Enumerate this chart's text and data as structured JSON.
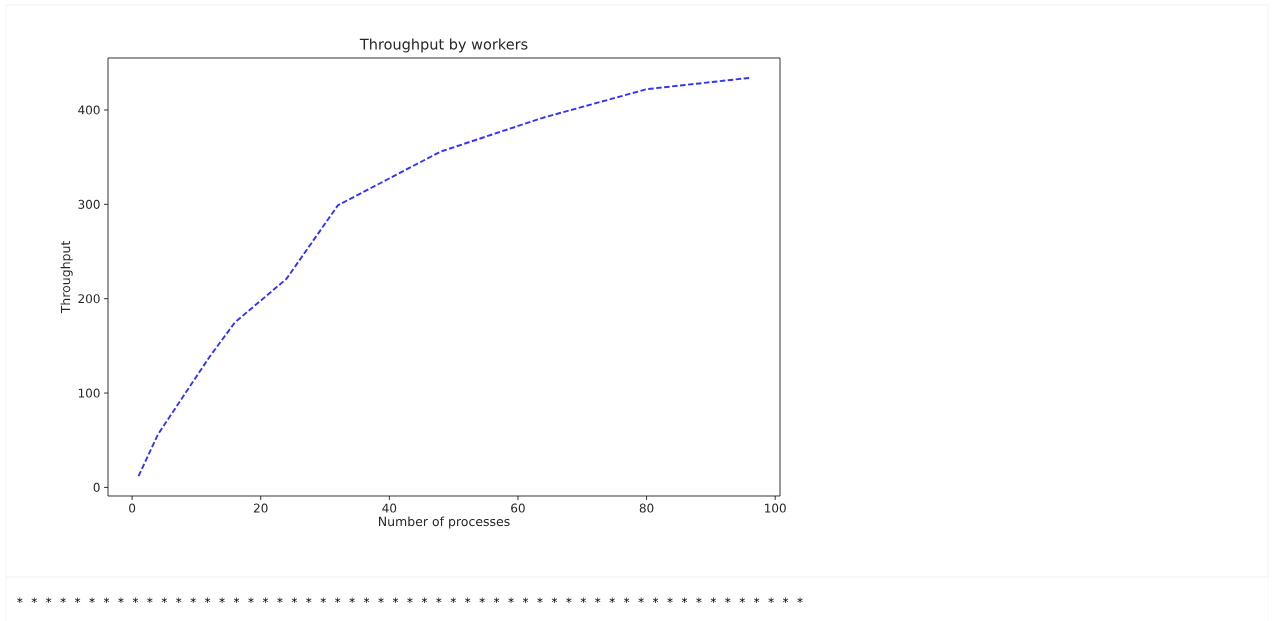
{
  "chart_data": {
    "type": "line",
    "title": "Throughput by workers",
    "xlabel": "Number of processes",
    "ylabel": "Throughput",
    "x": [
      1,
      4,
      12,
      16,
      24,
      32,
      48,
      64,
      80,
      96
    ],
    "values": [
      12,
      56,
      138,
      175,
      221,
      299,
      356,
      392,
      422,
      434
    ],
    "color": "#3333ff",
    "line_style": "dashed",
    "xlim": [
      -3.75,
      100.75
    ],
    "ylim": [
      -9.1,
      455.1
    ],
    "xticks": [
      0,
      20,
      40,
      60,
      80,
      100
    ],
    "yticks": [
      0,
      100,
      200,
      300,
      400
    ],
    "annotations": [
      "* * * * * * * * * * * * * * * * * * * * * * * * * * * * * * * * * * * * * * * * * * * * * * * * * * * * * * *"
    ]
  }
}
